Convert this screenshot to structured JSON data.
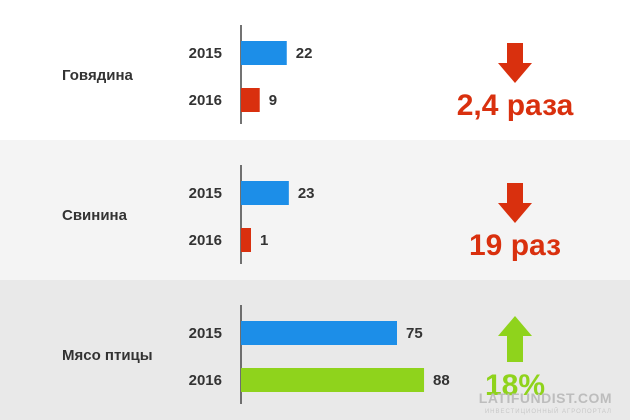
{
  "chart_data": {
    "type": "bar",
    "orientation": "horizontal",
    "groups": [
      {
        "category": "Говядина",
        "bars": [
          {
            "year": "2015",
            "value": 22,
            "color": "#1c8ee8"
          },
          {
            "year": "2016",
            "value": 9,
            "color": "#d9300e"
          }
        ],
        "change": {
          "direction": "down",
          "text": "2,4 раза",
          "color": "#d9300e"
        }
      },
      {
        "category": "Свинина",
        "bars": [
          {
            "year": "2015",
            "value": 23,
            "color": "#1c8ee8"
          },
          {
            "year": "2016",
            "value": 1,
            "color": "#d9300e"
          }
        ],
        "change": {
          "direction": "down",
          "text": "19 раз",
          "color": "#d9300e"
        }
      },
      {
        "category": "Мясо птицы",
        "bars": [
          {
            "year": "2015",
            "value": 75,
            "color": "#1c8ee8"
          },
          {
            "year": "2016",
            "value": 88,
            "color": "#8fd31c"
          }
        ],
        "change": {
          "direction": "up",
          "text": "18%",
          "color": "#8fd31c"
        }
      }
    ],
    "grid": false,
    "legend": "none"
  },
  "watermark": {
    "main": "LATIFUNDIST.COM",
    "sub": "ИНВЕСТИЦИОННЫЙ АГРОПОРТАЛ"
  }
}
